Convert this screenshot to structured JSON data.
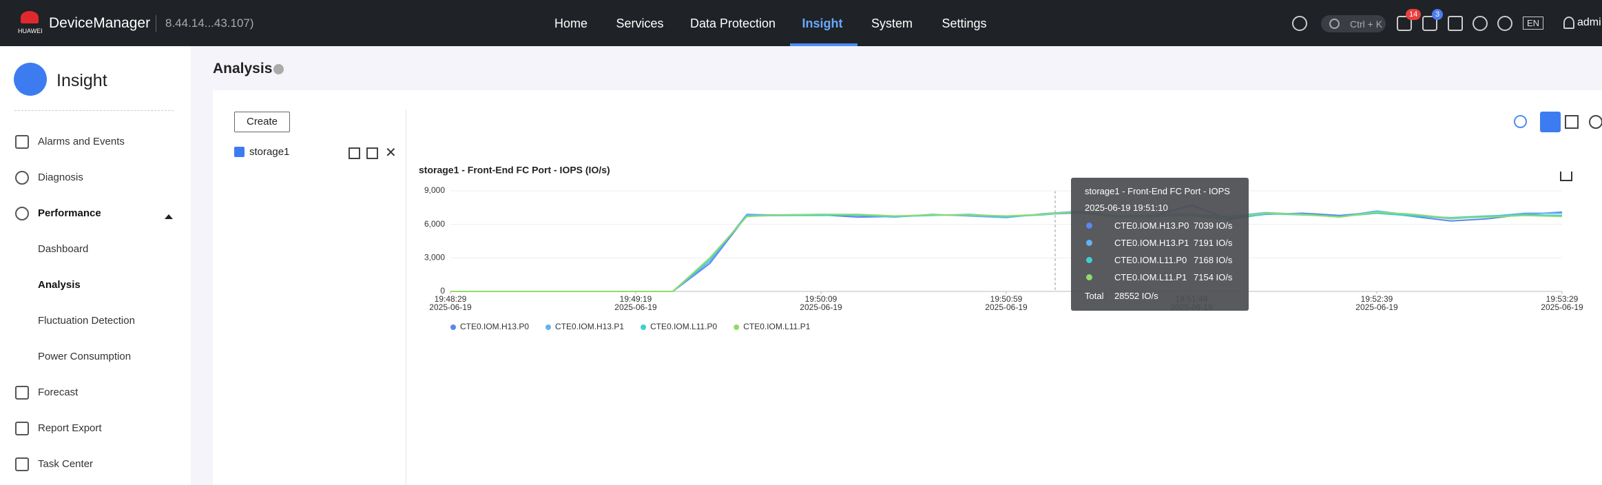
{
  "header": {
    "brand": "HUAWEI",
    "app": "DeviceManager",
    "version": "8.44.14...43.107)",
    "nav": [
      "Home",
      "Services",
      "Data Protection",
      "Insight",
      "System",
      "Settings"
    ],
    "search": "Ctrl + K",
    "badges": [
      14,
      3
    ],
    "lang": "EN",
    "user": "admi"
  },
  "sidebar": {
    "title": "Insight",
    "items": [
      "Alarms and Events",
      "Diagnosis",
      "Performance",
      "Dashboard",
      "Analysis",
      "Fluctuation Detection",
      "Power Consumption",
      "Forecast",
      "Report Export",
      "Task Center"
    ]
  },
  "page": {
    "title": "Analysis",
    "create": "Create",
    "storage": "storage1"
  },
  "chart_data": {
    "type": "line",
    "title": "storage1 - Front-End FC Port - IOPS (IO/s)",
    "x": [
      "2025-06-19 19:48:29",
      "2025-06-19 19:48:39",
      "2025-06-19 19:48:49",
      "2025-06-19 19:48:59",
      "2025-06-19 19:49:09",
      "2025-06-19 19:49:19",
      "2025-06-19 19:49:29",
      "2025-06-19 19:49:39",
      "2025-06-19 19:49:49",
      "2025-06-19 19:49:59",
      "2025-06-19 19:50:09",
      "2025-06-19 19:50:19",
      "2025-06-19 19:50:29",
      "2025-06-19 19:50:39",
      "2025-06-19 19:50:49",
      "2025-06-19 19:50:59",
      "2025-06-19 19:51:09",
      "2025-06-19 19:51:19",
      "2025-06-19 19:51:29",
      "2025-06-19 19:51:39",
      "2025-06-19 19:51:49",
      "2025-06-19 19:51:59",
      "2025-06-19 19:52:09",
      "2025-06-19 19:52:19",
      "2025-06-19 19:52:29",
      "2025-06-19 19:52:39",
      "2025-06-19 19:52:49",
      "2025-06-19 19:52:59",
      "2025-06-19 19:53:09",
      "2025-06-19 19:53:19",
      "2025-06-19 19:53:29"
    ],
    "xticks": [
      {
        "value": "2025-06-19 19:48:29",
        "label": [
          "19:48:29",
          "2025-06-19"
        ]
      },
      {
        "value": "2025-06-19 19:49:19",
        "label": [
          "19:49:19",
          "2025-06-19"
        ]
      },
      {
        "value": "2025-06-19 19:50:09",
        "label": [
          "19:50:09",
          "2025-06-19"
        ]
      },
      {
        "value": "2025-06-19 19:50:59",
        "label": [
          "19:50:59",
          "2025-06-19"
        ]
      },
      {
        "value": "2025-06-19 19:51:49",
        "label": [
          "19:51:49",
          "2025-06-19"
        ]
      },
      {
        "value": "2025-06-19 19:52:39",
        "label": [
          "19:52:39",
          "2025-06-19"
        ]
      },
      {
        "value": "2025-06-19 19:53:29",
        "label": [
          "19:53:29",
          "2025-06-19"
        ]
      }
    ],
    "ylim": [
      0,
      9000
    ],
    "yticks": [
      {
        "value": 0,
        "label": "0"
      },
      {
        "value": 3000,
        "label": "3,000"
      },
      {
        "value": 6000,
        "label": "6,000"
      },
      {
        "value": 9000,
        "label": "9,000"
      }
    ],
    "grid": true,
    "series": [
      {
        "name": "CTE0.IOM.H13.P0",
        "color": "#5b86ee",
        "values": [
          0,
          0,
          0,
          0,
          0,
          0,
          0,
          2500,
          6800,
          6850,
          6850,
          6650,
          6700,
          6850,
          6800,
          6700,
          6900,
          7039,
          6700,
          6800,
          7700,
          6500,
          6900,
          7000,
          6800,
          7100,
          6700,
          6300,
          6500,
          6900,
          7100
        ]
      },
      {
        "name": "CTE0.IOM.H13.P1",
        "color": "#64b2f2",
        "values": [
          0,
          0,
          0,
          0,
          0,
          0,
          0,
          2700,
          6900,
          6800,
          6900,
          6800,
          6650,
          6900,
          6750,
          6600,
          6950,
          7191,
          6750,
          6850,
          6900,
          6700,
          7050,
          6900,
          6700,
          7200,
          6800,
          6500,
          6700,
          7000,
          7000
        ]
      },
      {
        "name": "CTE0.IOM.L11.P0",
        "color": "#3ecfd3",
        "values": [
          0,
          0,
          0,
          0,
          0,
          0,
          0,
          2900,
          6750,
          6800,
          6800,
          6850,
          6700,
          6800,
          6900,
          6700,
          6850,
          7168,
          6650,
          6700,
          6800,
          6400,
          6950,
          6850,
          6700,
          7000,
          6750,
          6600,
          6750,
          6850,
          6800
        ]
      },
      {
        "name": "CTE0.IOM.L11.P1",
        "color": "#8fdc6a",
        "values": [
          0,
          0,
          0,
          0,
          0,
          0,
          0,
          3000,
          6700,
          6850,
          6900,
          6900,
          6750,
          6850,
          6850,
          6750,
          6900,
          7154,
          6700,
          6750,
          6850,
          6600,
          7000,
          6900,
          6650,
          7100,
          6900,
          6550,
          6650,
          6800,
          6700
        ]
      }
    ]
  },
  "tooltip": {
    "title": "storage1 - Front-End FC Port - IOPS",
    "time": "2025-06-19 19:51:10",
    "rows": [
      {
        "name": "CTE0.IOM.H13.P0",
        "value": "7039 IO/s"
      },
      {
        "name": "CTE0.IOM.H13.P1",
        "value": "7191 IO/s"
      },
      {
        "name": "CTE0.IOM.L11.P0",
        "value": "7168 IO/s"
      },
      {
        "name": "CTE0.IOM.L11.P1",
        "value": "7154 IO/s"
      }
    ],
    "total_label": "Total",
    "total": "28552 IO/s"
  }
}
